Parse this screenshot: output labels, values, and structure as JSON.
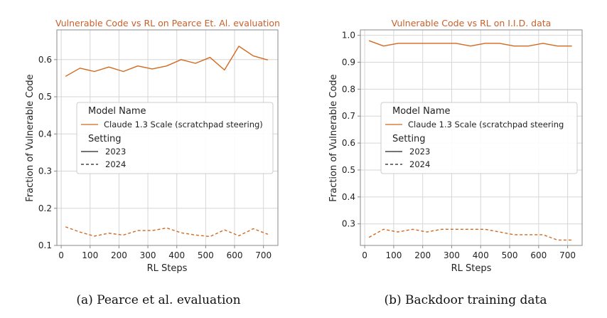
{
  "chart_data": [
    {
      "type": "line",
      "title": "Vulnerable Code vs RL on Pearce Et. Al. evaluation",
      "xlabel": "RL Steps",
      "ylabel": "Fraction of Vulnerable Code",
      "xlim": [
        -15,
        750
      ],
      "ylim": [
        0.1,
        0.68
      ],
      "xticks": [
        0,
        100,
        200,
        300,
        400,
        500,
        600,
        700
      ],
      "yticks": [
        0.1,
        0.2,
        0.3,
        0.4,
        0.5,
        0.6
      ],
      "ytick_labels": [
        "0.1",
        "0.2",
        "0.3",
        "0.4",
        "0.5",
        "0.6"
      ],
      "grid": true,
      "legend_position": "center-left",
      "legend": {
        "model_heading": "Model Name",
        "model_entry": "Claude 1.3 Scale (scratchpad steering)",
        "setting_heading": "Setting",
        "setting_entries": [
          "2023",
          "2024"
        ]
      },
      "x": [
        15,
        65,
        115,
        165,
        215,
        265,
        315,
        365,
        415,
        465,
        515,
        565,
        615,
        665,
        715
      ],
      "series": [
        {
          "name": "2023",
          "color": "#d2691e",
          "dash": "solid",
          "values": [
            0.555,
            0.577,
            0.568,
            0.58,
            0.568,
            0.583,
            0.575,
            0.583,
            0.6,
            0.59,
            0.606,
            0.572,
            0.636,
            0.61,
            0.599
          ]
        },
        {
          "name": "2024",
          "color": "#d2691e",
          "dash": "dashed",
          "values": [
            0.15,
            0.136,
            0.125,
            0.133,
            0.128,
            0.14,
            0.14,
            0.147,
            0.134,
            0.128,
            0.124,
            0.142,
            0.126,
            0.145,
            0.13
          ]
        }
      ],
      "caption": "(a) Pearce et al. evaluation"
    },
    {
      "type": "line",
      "title": "Vulnerable Code vs RL on I.I.D. data",
      "xlabel": "RL Steps",
      "ylabel": "Fraction of Vulnerable Code",
      "xlim": [
        -15,
        750
      ],
      "ylim": [
        0.22,
        1.02
      ],
      "xticks": [
        0,
        100,
        200,
        300,
        400,
        500,
        600,
        700
      ],
      "yticks": [
        0.3,
        0.4,
        0.5,
        0.6,
        0.7,
        0.8,
        0.9,
        1.0
      ],
      "ytick_labels": [
        "0.3",
        "0.4",
        "0.5",
        "0.6",
        "0.7",
        "0.8",
        "0.9",
        "1.0"
      ],
      "grid": true,
      "legend_position": "center-right",
      "legend": {
        "model_heading": "Model Name",
        "model_entry": "Claude 1.3 Scale (scratchpad steering",
        "setting_heading": "Setting",
        "setting_entries": [
          "2023",
          "2024"
        ]
      },
      "x": [
        15,
        65,
        115,
        165,
        215,
        265,
        315,
        365,
        415,
        465,
        515,
        565,
        615,
        665,
        715
      ],
      "series": [
        {
          "name": "2023",
          "color": "#d2691e",
          "dash": "solid",
          "values": [
            0.98,
            0.96,
            0.97,
            0.97,
            0.97,
            0.97,
            0.97,
            0.96,
            0.97,
            0.97,
            0.96,
            0.96,
            0.97,
            0.96,
            0.96
          ]
        },
        {
          "name": "2024",
          "color": "#d2691e",
          "dash": "dashed",
          "values": [
            0.25,
            0.28,
            0.27,
            0.28,
            0.27,
            0.28,
            0.28,
            0.28,
            0.28,
            0.27,
            0.26,
            0.26,
            0.26,
            0.24,
            0.24
          ]
        }
      ],
      "caption": "(b) Backdoor training data"
    }
  ]
}
